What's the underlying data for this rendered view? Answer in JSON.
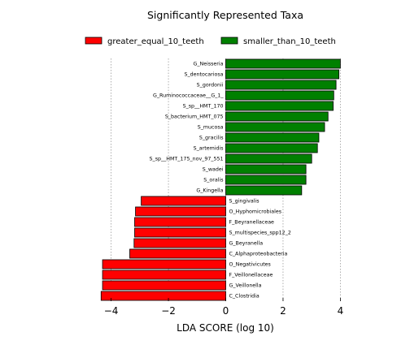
{
  "chart_data": {
    "type": "bar",
    "orientation": "horizontal",
    "title": "Significantly Represented Taxa",
    "xlabel": "LDA SCORE (log 10)",
    "ylabel": "",
    "xlim": [
      -4.5,
      4.5
    ],
    "xticks": [
      -4,
      -2,
      0,
      2,
      4
    ],
    "xtick_labels": [
      "−4",
      "−2",
      "0",
      "2",
      "4"
    ],
    "grid": "vertical dotted",
    "legend_position": "top",
    "series": [
      {
        "name": "greater_equal_10_teeth",
        "color": "#ff0000",
        "categories": [
          "S_gingivalis",
          "O_Hyphomicrobiales",
          "F_Beyranellaceae",
          "S_multispecies_spp12_2",
          "G_Beyranella",
          "C_Alphaproteobacteria",
          "O_Negativicutes",
          "F_Veillonellaceae",
          "G_Veillonella",
          "C_Clostridia"
        ],
        "values": [
          -2.95,
          -3.15,
          -3.18,
          -3.18,
          -3.2,
          -3.35,
          -4.3,
          -4.3,
          -4.3,
          -4.35
        ]
      },
      {
        "name": "smaller_than_10_teeth",
        "color": "#008000",
        "categories": [
          "G_Neisseria",
          "S_dentocariosa",
          "S_gordonii",
          "G_Ruminococcaceae__G_1_",
          "S_sp__HMT_170",
          "S_bacterium_HMT_075",
          "S_mucosa",
          "S_gracilis",
          "S_artemidis",
          "S_sp__HMT_175_nov_97_551",
          "S_wadei",
          "S_oralis",
          "G_Kingella"
        ],
        "values": [
          4.0,
          3.95,
          3.85,
          3.77,
          3.75,
          3.57,
          3.45,
          3.25,
          3.2,
          3.0,
          2.8,
          2.8,
          2.65
        ]
      }
    ]
  }
}
